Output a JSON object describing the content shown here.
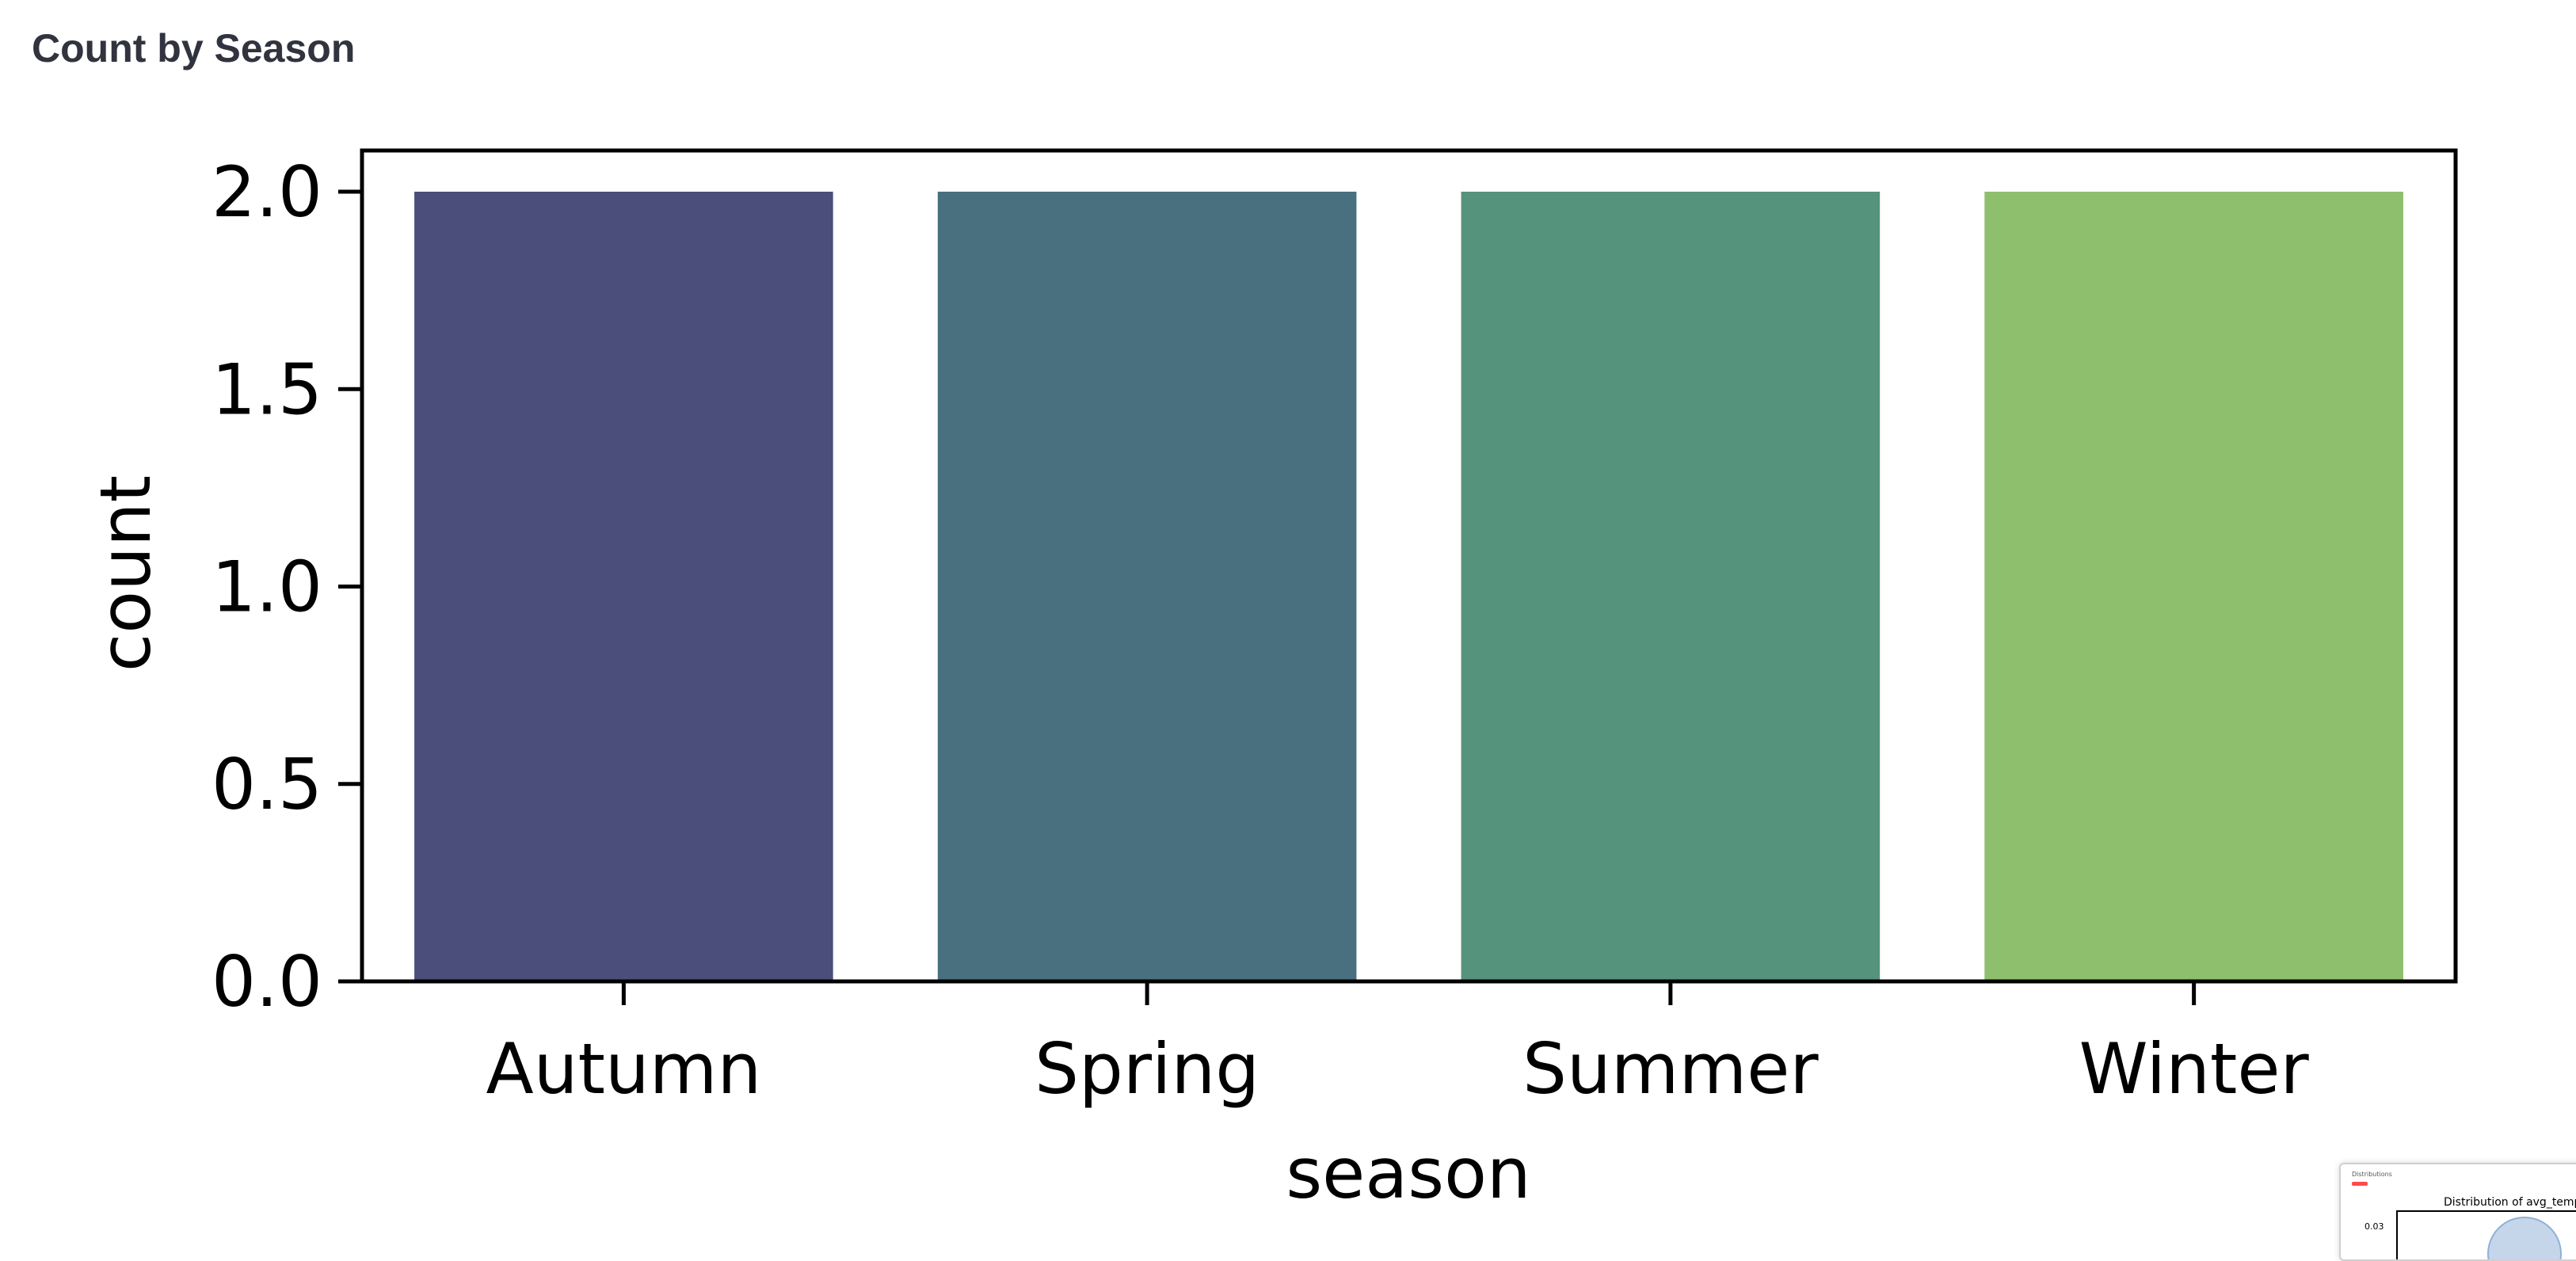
{
  "page": {
    "section_title": "Count by Season"
  },
  "chart_data": {
    "type": "bar",
    "title": "",
    "xlabel": "season",
    "ylabel": "count",
    "categories": [
      "Autumn",
      "Spring",
      "Summer",
      "Winter"
    ],
    "values": [
      2,
      2,
      2,
      2
    ],
    "colors": [
      "#4b4e7a",
      "#48707e",
      "#55937c",
      "#8dbf6c"
    ],
    "ylim": [
      0,
      2.1
    ],
    "yticks": [
      0.0,
      0.5,
      1.0,
      1.5,
      2.0
    ],
    "ytick_labels": [
      "0.0",
      "0.5",
      "1.0",
      "1.5",
      "2.0"
    ],
    "grid": false,
    "legend": "none"
  },
  "thumbnail": {
    "header": "Distributions",
    "title": "Distribution of avg_temp",
    "tick": "0.03"
  }
}
